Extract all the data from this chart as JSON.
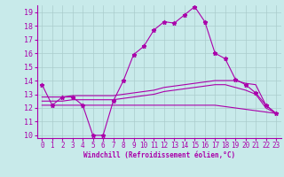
{
  "background_color": "#c8eaea",
  "grid_color": "#aacccc",
  "line_color": "#aa00aa",
  "xlabel": "Windchill (Refroidissement éolien,°C)",
  "ylim": [
    9.8,
    19.5
  ],
  "xlim": [
    -0.5,
    23.5
  ],
  "yticks": [
    10,
    11,
    12,
    13,
    14,
    15,
    16,
    17,
    18,
    19
  ],
  "xticks": [
    0,
    1,
    2,
    3,
    4,
    5,
    6,
    7,
    8,
    9,
    10,
    11,
    12,
    13,
    14,
    15,
    16,
    17,
    18,
    19,
    20,
    21,
    22,
    23
  ],
  "lines": [
    {
      "x": [
        0,
        1,
        2,
        3,
        4,
        5,
        6,
        7,
        8,
        9,
        10,
        11,
        12,
        13,
        14,
        15,
        16,
        17,
        18,
        19,
        20,
        21,
        22,
        23
      ],
      "y": [
        13.7,
        12.2,
        12.8,
        12.8,
        12.2,
        10.0,
        10.0,
        12.5,
        14.0,
        15.9,
        16.5,
        17.7,
        18.3,
        18.2,
        18.8,
        19.4,
        18.3,
        16.0,
        15.6,
        14.1,
        13.7,
        13.1,
        12.2,
        11.6
      ],
      "marker": true
    },
    {
      "x": [
        0,
        1,
        2,
        3,
        4,
        5,
        6,
        7,
        8,
        9,
        10,
        11,
        12,
        13,
        14,
        15,
        16,
        17,
        18,
        19,
        20,
        21,
        22,
        23
      ],
      "y": [
        12.8,
        12.8,
        12.8,
        12.9,
        12.9,
        12.9,
        12.9,
        12.9,
        13.0,
        13.1,
        13.2,
        13.3,
        13.5,
        13.6,
        13.7,
        13.8,
        13.9,
        14.0,
        14.0,
        14.0,
        13.8,
        13.7,
        12.2,
        11.6
      ],
      "marker": false
    },
    {
      "x": [
        0,
        1,
        2,
        3,
        4,
        5,
        6,
        7,
        8,
        9,
        10,
        11,
        12,
        13,
        14,
        15,
        16,
        17,
        18,
        19,
        20,
        21,
        22,
        23
      ],
      "y": [
        12.5,
        12.5,
        12.5,
        12.6,
        12.6,
        12.6,
        12.6,
        12.6,
        12.7,
        12.8,
        12.9,
        13.0,
        13.2,
        13.3,
        13.4,
        13.5,
        13.6,
        13.7,
        13.7,
        13.5,
        13.3,
        13.0,
        12.0,
        11.6
      ],
      "marker": false
    },
    {
      "x": [
        0,
        1,
        2,
        3,
        4,
        5,
        6,
        7,
        8,
        9,
        10,
        11,
        12,
        13,
        14,
        15,
        16,
        17,
        18,
        19,
        20,
        21,
        22,
        23
      ],
      "y": [
        12.2,
        12.2,
        12.2,
        12.2,
        12.2,
        12.2,
        12.2,
        12.2,
        12.2,
        12.2,
        12.2,
        12.2,
        12.2,
        12.2,
        12.2,
        12.2,
        12.2,
        12.2,
        12.1,
        12.0,
        11.9,
        11.8,
        11.7,
        11.6
      ],
      "marker": false
    }
  ]
}
